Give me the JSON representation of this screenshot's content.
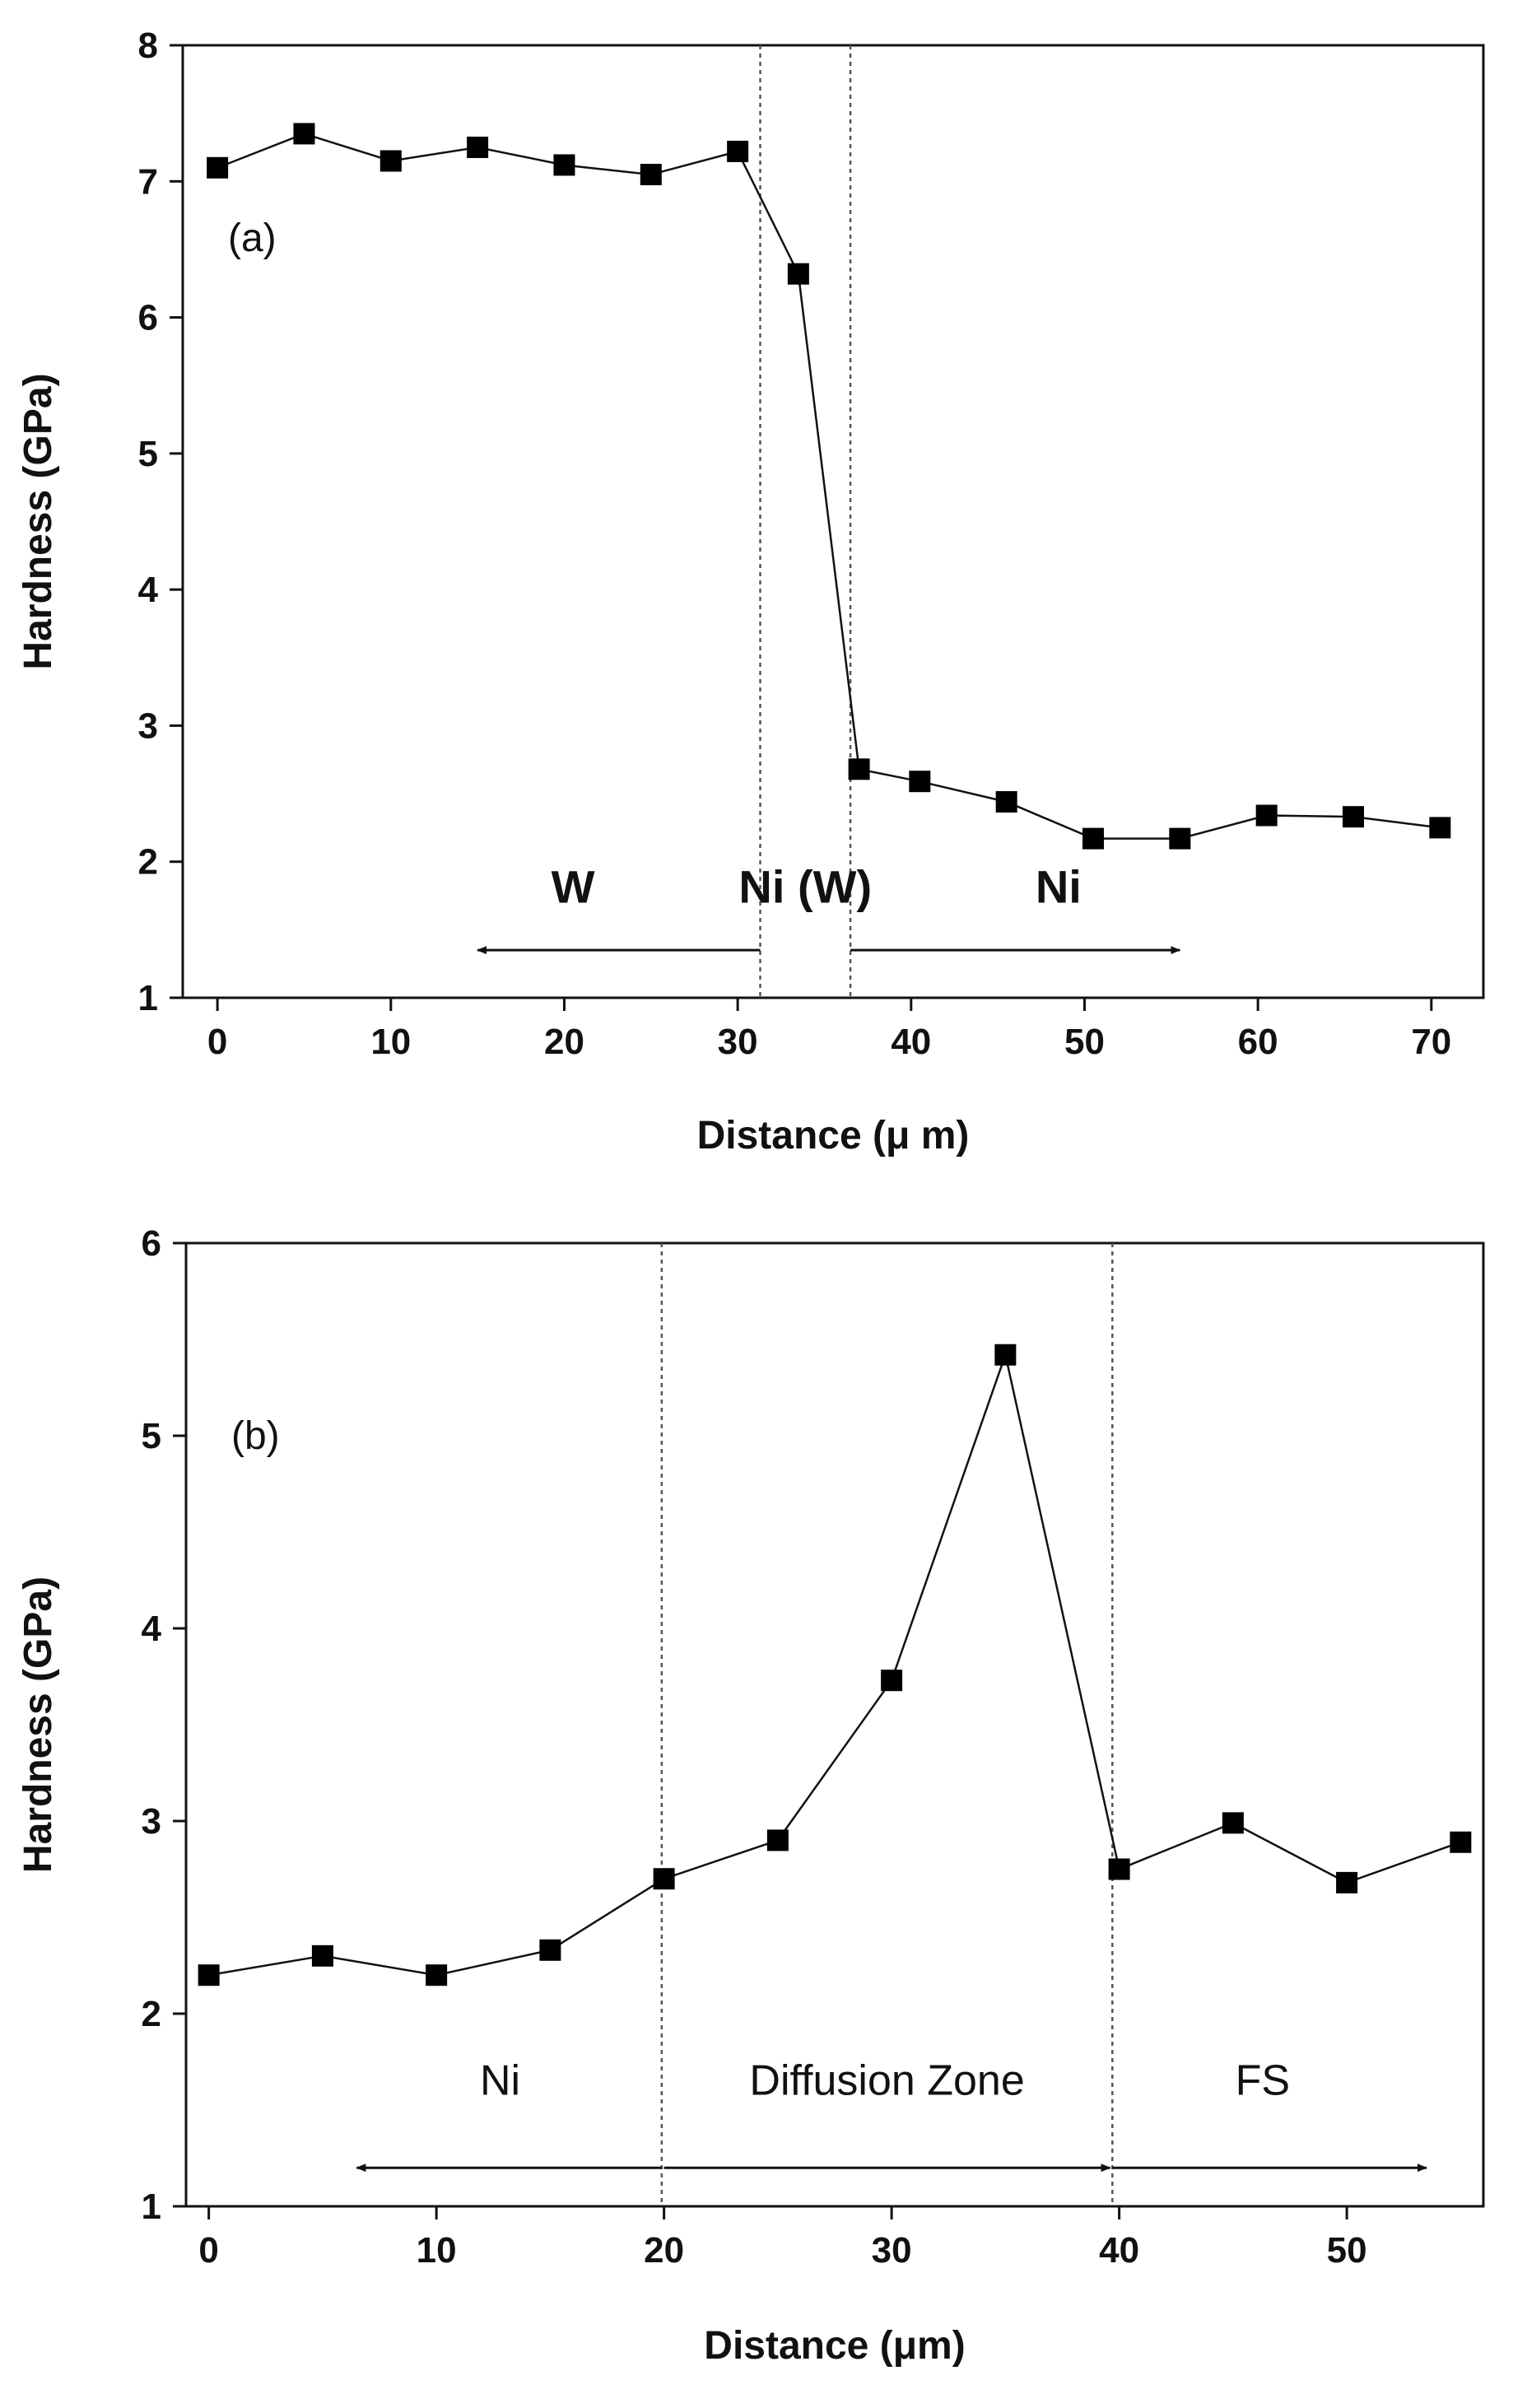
{
  "chart_data": [
    {
      "type": "line",
      "panel_label": "(a)",
      "xlabel": "Distance (μ m)",
      "ylabel": "Hardness (GPa)",
      "xlim": [
        -2,
        73
      ],
      "ylim": [
        1,
        8
      ],
      "xticks": [
        0,
        10,
        20,
        30,
        40,
        50,
        60,
        70
      ],
      "yticks": [
        1,
        2,
        3,
        4,
        5,
        6,
        7,
        8
      ],
      "grid": false,
      "marker": "square",
      "series": [
        {
          "name": "Hardness",
          "x": [
            0,
            5,
            10,
            15,
            20,
            25,
            30,
            33.5,
            37,
            40.5,
            45.5,
            50.5,
            55.5,
            60.5,
            65.5,
            70.5
          ],
          "y": [
            7.1,
            7.35,
            7.15,
            7.25,
            7.12,
            7.05,
            7.22,
            6.32,
            2.68,
            2.59,
            2.44,
            2.17,
            2.17,
            2.34,
            2.33,
            2.25
          ]
        }
      ],
      "boundaries": [
        31.3,
        36.5
      ],
      "regions": [
        {
          "label": "W",
          "x": 20.5,
          "y": 1.7,
          "arrow_from": 31.3,
          "arrow_to": 15.0,
          "arrow_y": 1.35
        },
        {
          "label": "Ni (W)",
          "x": 33.9,
          "y": 1.7
        },
        {
          "label": "Ni",
          "x": 48.5,
          "y": 1.7,
          "arrow_from": 36.5,
          "arrow_to": 55.5,
          "arrow_y": 1.35
        }
      ]
    },
    {
      "type": "line",
      "panel_label": "(b)",
      "xlabel": "Distance (μm)",
      "ylabel": "Hardness (GPa)",
      "xlim": [
        -1,
        56
      ],
      "ylim": [
        1,
        6
      ],
      "xticks": [
        0,
        10,
        20,
        30,
        40,
        50
      ],
      "yticks": [
        1,
        2,
        3,
        4,
        5,
        6
      ],
      "grid": false,
      "marker": "square",
      "series": [
        {
          "name": "Hardness",
          "x": [
            0,
            5,
            10,
            15,
            20,
            25,
            30,
            35,
            40,
            45,
            50,
            55
          ],
          "y": [
            2.2,
            2.3,
            2.2,
            2.33,
            2.7,
            2.9,
            3.73,
            5.42,
            2.75,
            2.99,
            2.68,
            2.89
          ]
        }
      ],
      "boundaries": [
        19.9,
        39.7
      ],
      "regions": [
        {
          "label": "Ni",
          "x": 12.8,
          "y": 1.58,
          "arrow_from": 19.9,
          "arrow_to": 6.5,
          "arrow_y": 1.2
        },
        {
          "label": "Diffusion Zone",
          "x": 29.8,
          "y": 1.58,
          "arrow_from": 20.0,
          "arrow_to": 39.6,
          "arrow_y": 1.2
        },
        {
          "label": "FS",
          "x": 46.3,
          "y": 1.58,
          "arrow_from": 39.7,
          "arrow_to": 53.5,
          "arrow_y": 1.2
        }
      ]
    }
  ]
}
